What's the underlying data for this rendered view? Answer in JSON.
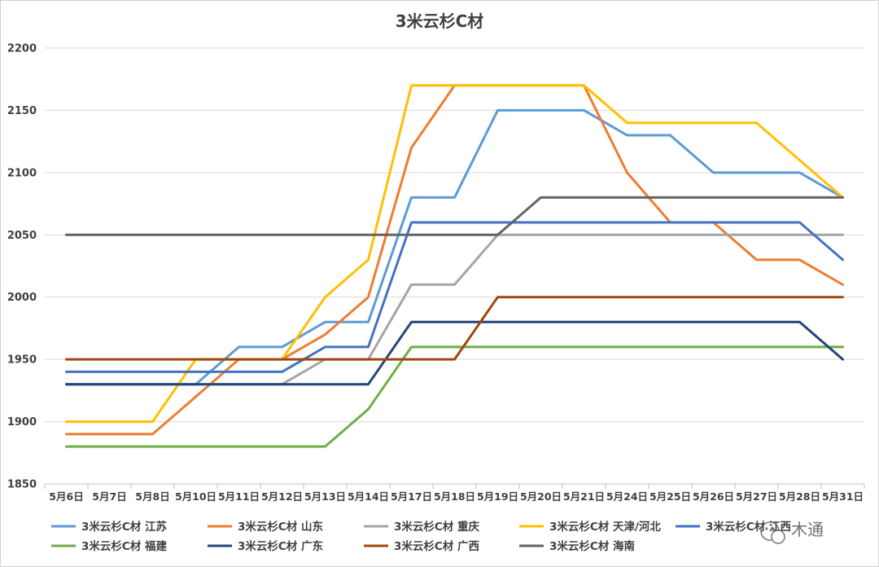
{
  "chart_data": {
    "type": "line",
    "title": "3米云杉C材",
    "xlabel": "",
    "ylabel": "",
    "ylim": [
      1850,
      2200
    ],
    "yticks": [
      1850,
      1900,
      1950,
      2000,
      2050,
      2100,
      2150,
      2200
    ],
    "grid": true,
    "legend_position": "bottom",
    "categories": [
      "5月6日",
      "5月7日",
      "5月8日",
      "5月10日",
      "5月11日",
      "5月12日",
      "5月13日",
      "5月14日",
      "5月17日",
      "5月18日",
      "5月19日",
      "5月20日",
      "5月21日",
      "5月24日",
      "5月25日",
      "5月26日",
      "5月27日",
      "5月28日",
      "5月31日"
    ],
    "series": [
      {
        "name": "3米云杉C材 江苏",
        "color": "#5b9bd5",
        "values": [
          1930,
          1930,
          1930,
          1930,
          1960,
          1960,
          1980,
          1980,
          2080,
          2080,
          2150,
          2150,
          2150,
          2130,
          2130,
          2100,
          2100,
          2100,
          2080
        ]
      },
      {
        "name": "3米云杉C材 山东",
        "color": "#ed7d31",
        "values": [
          1890,
          1890,
          1890,
          1920,
          1950,
          1950,
          1970,
          2000,
          2120,
          2170,
          2170,
          2170,
          2170,
          2100,
          2060,
          2060,
          2030,
          2030,
          2010
        ]
      },
      {
        "name": "3米云杉C材 重庆",
        "color": "#a5a5a5",
        "values": [
          1930,
          1930,
          1930,
          1930,
          1930,
          1930,
          1950,
          1950,
          2010,
          2010,
          2050,
          2050,
          2050,
          2050,
          2050,
          2050,
          2050,
          2050,
          2050
        ]
      },
      {
        "name": "3米云杉C材 天津/河北",
        "color": "#ffc000",
        "values": [
          1900,
          1900,
          1900,
          1950,
          1950,
          1950,
          2000,
          2030,
          2170,
          2170,
          2170,
          2170,
          2170,
          2140,
          2140,
          2140,
          2140,
          2110,
          2080
        ]
      },
      {
        "name": "3米云杉C材 江西",
        "color": "#4472c4",
        "values": [
          1940,
          1940,
          1940,
          1940,
          1940,
          1940,
          1960,
          1960,
          2060,
          2060,
          2060,
          2060,
          2060,
          2060,
          2060,
          2060,
          2060,
          2060,
          2030
        ]
      },
      {
        "name": "3米云杉C材 福建",
        "color": "#70ad47",
        "values": [
          1880,
          1880,
          1880,
          1880,
          1880,
          1880,
          1880,
          1910,
          1960,
          1960,
          1960,
          1960,
          1960,
          1960,
          1960,
          1960,
          1960,
          1960,
          1960
        ]
      },
      {
        "name": "3米云杉C材 广东",
        "color": "#264478",
        "values": [
          1930,
          1930,
          1930,
          1930,
          1930,
          1930,
          1930,
          1930,
          1980,
          1980,
          1980,
          1980,
          1980,
          1980,
          1980,
          1980,
          1980,
          1980,
          1950
        ]
      },
      {
        "name": "3米云杉C材 广西",
        "color": "#9e480e",
        "values": [
          1950,
          1950,
          1950,
          1950,
          1950,
          1950,
          1950,
          1950,
          1950,
          1950,
          2000,
          2000,
          2000,
          2000,
          2000,
          2000,
          2000,
          2000,
          2000
        ]
      },
      {
        "name": "3米云杉C材 海南",
        "color": "#636363",
        "values": [
          2050,
          2050,
          2050,
          2050,
          2050,
          2050,
          2050,
          2050,
          2050,
          2050,
          2050,
          2080,
          2080,
          2080,
          2080,
          2080,
          2080,
          2080,
          2080
        ]
      }
    ],
    "legend_rows": [
      [
        "3米云杉C材 江苏",
        "3米云杉C材 山东",
        "3米云杉C材 重庆",
        "3米云杉C材 天津/河北",
        "3米云杉C材 江西"
      ],
      [
        "3米云杉C材 福建",
        "3米云杉C材 广东",
        "3米云杉C材 广西",
        "3米云杉C材 海南"
      ]
    ]
  },
  "watermark": {
    "text": "木通",
    "icon": "wechat-icon"
  }
}
